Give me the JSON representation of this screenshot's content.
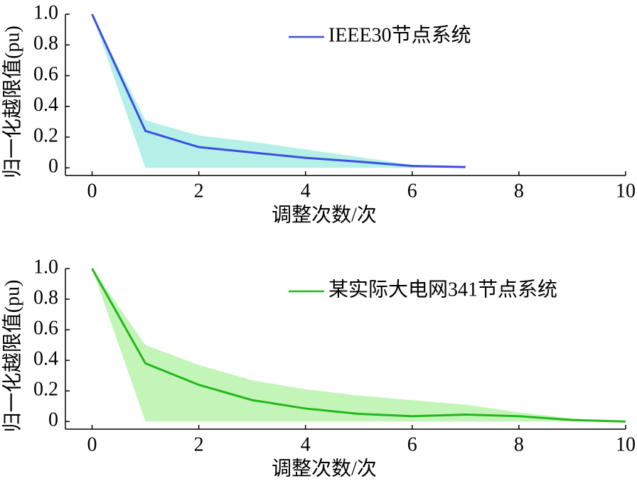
{
  "chart_data": [
    {
      "type": "line",
      "ylabel": "归一化越限值(pu)",
      "xlabel": "调整次数/次",
      "x": [
        0,
        1,
        2,
        3,
        4,
        5,
        6,
        7
      ],
      "series": [
        {
          "name": "IEEE30节点系统",
          "color": "#3a4fe0",
          "values": [
            1.0,
            0.24,
            0.135,
            0.1,
            0.065,
            0.04,
            0.012,
            0.005
          ]
        }
      ],
      "band": {
        "color": "#b4f0e8",
        "upper": [
          1.0,
          0.31,
          0.21,
          0.17,
          0.12,
          0.07,
          0.02,
          0.005
        ],
        "lower": [
          1.0,
          0,
          0,
          0,
          0,
          0,
          0,
          0.005
        ]
      },
      "xlim": [
        -0.5,
        10
      ],
      "xticks": [
        0,
        2,
        4,
        6,
        8,
        10
      ],
      "ylim": [
        -0.05,
        1.0
      ],
      "yticks": [
        0,
        0.2,
        0.4,
        0.6,
        0.8,
        {
          "value": 1,
          "label": "1.0"
        }
      ],
      "legend": "upper right"
    },
    {
      "type": "line",
      "ylabel": "归一化越限值(pu)",
      "xlabel": "调整次数/次",
      "x": [
        0,
        1,
        2,
        3,
        4,
        5,
        6,
        7,
        8,
        9,
        10
      ],
      "series": [
        {
          "name": "某实际大电网341节点系统",
          "color": "#22b81c",
          "values": [
            1.0,
            0.38,
            0.24,
            0.14,
            0.085,
            0.05,
            0.035,
            0.045,
            0.035,
            0.01,
            0.0
          ]
        }
      ],
      "band": {
        "color": "#c4f5b8",
        "upper": [
          1.0,
          0.5,
          0.37,
          0.27,
          0.21,
          0.17,
          0.14,
          0.11,
          0.06,
          0.02,
          0.0
        ],
        "lower": [
          1.0,
          0,
          0,
          0,
          0,
          0,
          0,
          0,
          0,
          0,
          0
        ]
      },
      "xlim": [
        -0.5,
        10
      ],
      "xticks": [
        0,
        2,
        4,
        6,
        8,
        10
      ],
      "ylim": [
        -0.05,
        1.0
      ],
      "yticks": [
        0,
        0.2,
        0.4,
        0.6,
        0.8,
        {
          "value": 1,
          "label": "1.0"
        }
      ],
      "legend": "upper right"
    }
  ]
}
